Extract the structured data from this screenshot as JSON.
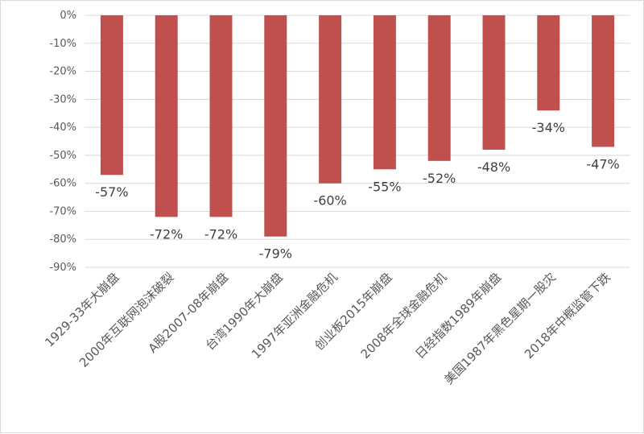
{
  "chart_data": {
    "type": "bar",
    "categories": [
      "1929-33年大崩盘",
      "2000年互联网泡沫破裂",
      "A股2007-08年崩盘",
      "台湾1990年大崩盘",
      "1997年亚洲金融危机",
      "创业板2015年崩盘",
      "2008年全球金融危机",
      "日经指数1989年崩盘",
      "美国1987年黑色星期一股灾",
      "2018年中概监管下跌"
    ],
    "values": [
      -57,
      -72,
      -72,
      -79,
      -60,
      -55,
      -52,
      -48,
      -34,
      -47
    ],
    "data_labels": [
      "-57%",
      "-72%",
      "-72%",
      "-79%",
      "-60%",
      "-55%",
      "-52%",
      "-48%",
      "-34%",
      "-47%"
    ],
    "y_ticks": [
      0,
      -10,
      -20,
      -30,
      -40,
      -50,
      -60,
      -70,
      -80,
      -90
    ],
    "y_tick_labels": [
      "0%",
      "-10%",
      "-20%",
      "-30%",
      "-40%",
      "-50%",
      "-60%",
      "-70%",
      "-80%",
      "-90%"
    ],
    "ylim": [
      -90,
      0
    ],
    "title": "",
    "xlabel": "",
    "ylabel": "",
    "grid": true,
    "bar_color": "#c0504d"
  }
}
